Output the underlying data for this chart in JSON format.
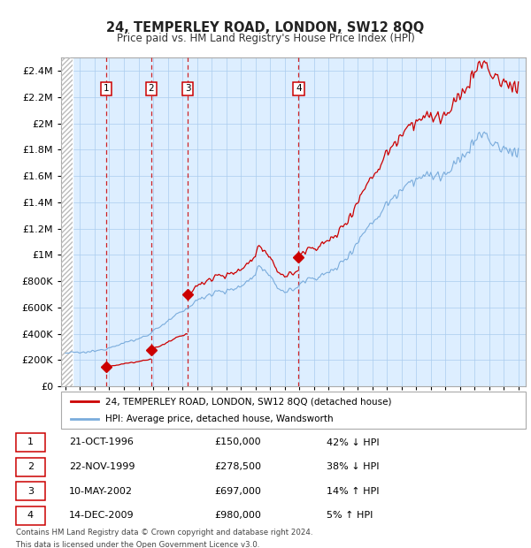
{
  "title": "24, TEMPERLEY ROAD, LONDON, SW12 8QQ",
  "subtitle": "Price paid vs. HM Land Registry's House Price Index (HPI)",
  "ylim": [
    0,
    2500000
  ],
  "yticks": [
    0,
    200000,
    400000,
    600000,
    800000,
    1000000,
    1200000,
    1400000,
    1600000,
    1800000,
    2000000,
    2200000,
    2400000
  ],
  "ytick_labels": [
    "£0",
    "£200K",
    "£400K",
    "£600K",
    "£800K",
    "£1M",
    "£1.2M",
    "£1.4M",
    "£1.6M",
    "£1.8M",
    "£2M",
    "£2.2M",
    "£2.4M"
  ],
  "xlim_start": 1993.7,
  "xlim_end": 2025.5,
  "hatch_end": 1994.5,
  "transactions": [
    {
      "num": 1,
      "date": "21-OCT-1996",
      "year": 1996.8,
      "price": 150000,
      "pct": "42%",
      "dir": "↓"
    },
    {
      "num": 2,
      "date": "22-NOV-1999",
      "year": 1999.88,
      "price": 278500,
      "pct": "38%",
      "dir": "↓"
    },
    {
      "num": 3,
      "date": "10-MAY-2002",
      "year": 2002.36,
      "price": 697000,
      "pct": "14%",
      "dir": "↑"
    },
    {
      "num": 4,
      "date": "14-DEC-2009",
      "year": 2009.95,
      "price": 980000,
      "pct": "5%",
      "dir": "↑"
    }
  ],
  "house_color": "#cc0000",
  "hpi_color": "#7aacdc",
  "bg_color": "#ddeeff",
  "legend_house": "24, TEMPERLEY ROAD, LONDON, SW12 8QQ (detached house)",
  "legend_hpi": "HPI: Average price, detached house, Wandsworth",
  "footer1": "Contains HM Land Registry data © Crown copyright and database right 2024.",
  "footer2": "This data is licensed under the Open Government Licence v3.0.",
  "hpi_anchors": [
    [
      1994.0,
      252000
    ],
    [
      1994.5,
      258000
    ],
    [
      1995.0,
      255000
    ],
    [
      1995.5,
      260000
    ],
    [
      1996.0,
      268000
    ],
    [
      1996.5,
      278000
    ],
    [
      1997.0,
      295000
    ],
    [
      1997.5,
      315000
    ],
    [
      1998.0,
      330000
    ],
    [
      1998.5,
      345000
    ],
    [
      1999.0,
      360000
    ],
    [
      1999.5,
      385000
    ],
    [
      2000.0,
      420000
    ],
    [
      2000.5,
      460000
    ],
    [
      2001.0,
      490000
    ],
    [
      2001.5,
      535000
    ],
    [
      2002.0,
      565000
    ],
    [
      2002.5,
      610000
    ],
    [
      2003.0,
      650000
    ],
    [
      2003.5,
      680000
    ],
    [
      2004.0,
      710000
    ],
    [
      2004.5,
      730000
    ],
    [
      2005.0,
      720000
    ],
    [
      2005.5,
      735000
    ],
    [
      2006.0,
      760000
    ],
    [
      2006.5,
      800000
    ],
    [
      2007.0,
      860000
    ],
    [
      2007.3,
      920000
    ],
    [
      2007.7,
      870000
    ],
    [
      2008.0,
      820000
    ],
    [
      2008.5,
      760000
    ],
    [
      2009.0,
      720000
    ],
    [
      2009.5,
      730000
    ],
    [
      2010.0,
      770000
    ],
    [
      2010.5,
      810000
    ],
    [
      2011.0,
      830000
    ],
    [
      2011.5,
      840000
    ],
    [
      2012.0,
      860000
    ],
    [
      2012.5,
      900000
    ],
    [
      2013.0,
      950000
    ],
    [
      2013.5,
      1020000
    ],
    [
      2014.0,
      1100000
    ],
    [
      2014.5,
      1180000
    ],
    [
      2015.0,
      1250000
    ],
    [
      2015.5,
      1310000
    ],
    [
      2016.0,
      1390000
    ],
    [
      2016.5,
      1440000
    ],
    [
      2017.0,
      1510000
    ],
    [
      2017.5,
      1560000
    ],
    [
      2018.0,
      1580000
    ],
    [
      2018.5,
      1600000
    ],
    [
      2019.0,
      1590000
    ],
    [
      2019.5,
      1610000
    ],
    [
      2020.0,
      1600000
    ],
    [
      2020.5,
      1650000
    ],
    [
      2021.0,
      1720000
    ],
    [
      2021.5,
      1790000
    ],
    [
      2022.0,
      1870000
    ],
    [
      2022.5,
      1920000
    ],
    [
      2023.0,
      1880000
    ],
    [
      2023.5,
      1820000
    ],
    [
      2024.0,
      1800000
    ],
    [
      2024.5,
      1790000
    ],
    [
      2025.0,
      1800000
    ]
  ]
}
